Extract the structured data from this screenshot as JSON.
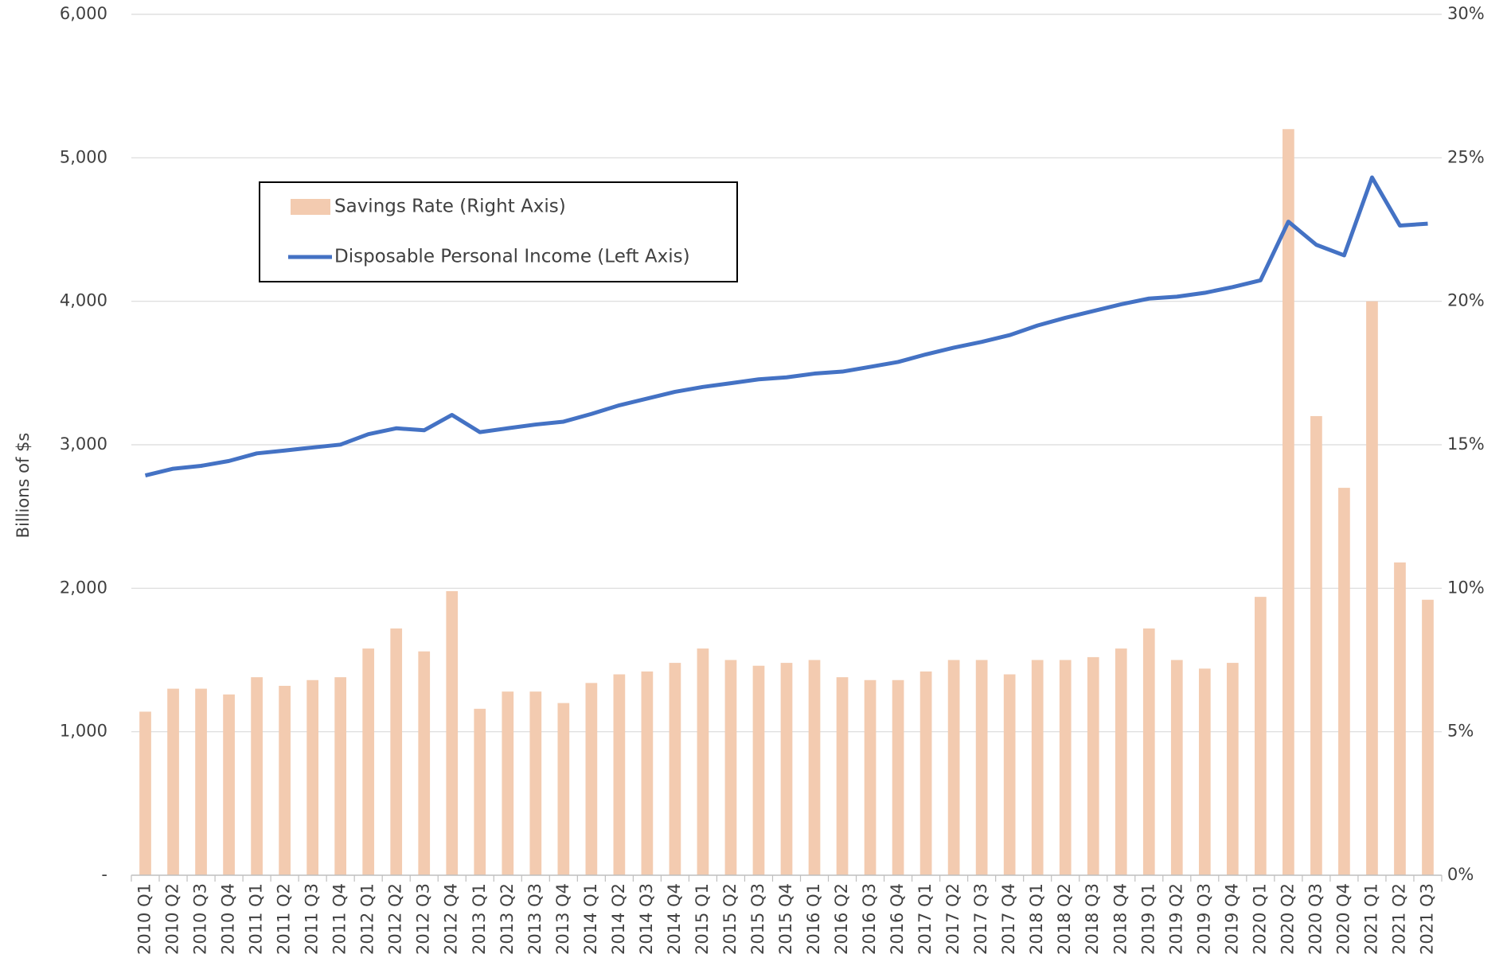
{
  "chart_data": {
    "type": "bar-line",
    "y_label": "Billions of $s",
    "categories": [
      "2010 Q1",
      "2010 Q2",
      "2010 Q3",
      "2010 Q4",
      "2011 Q1",
      "2011 Q2",
      "2011 Q3",
      "2011 Q4",
      "2012 Q1",
      "2012 Q2",
      "2012 Q3",
      "2012 Q4",
      "2013 Q1",
      "2013 Q2",
      "2013 Q3",
      "2013 Q4",
      "2014 Q1",
      "2014 Q2",
      "2014 Q3",
      "2014 Q4",
      "2015 Q1",
      "2015 Q2",
      "2015 Q3",
      "2015 Q4",
      "2016 Q1",
      "2016 Q2",
      "2016 Q3",
      "2016 Q4",
      "2017 Q1",
      "2017 Q2",
      "2017 Q3",
      "2017 Q4",
      "2018 Q1",
      "2018 Q2",
      "2018 Q3",
      "2018 Q4",
      "2019 Q1",
      "2019 Q2",
      "2019 Q3",
      "2019 Q4",
      "2020 Q1",
      "2020 Q2",
      "2020 Q3",
      "2020 Q4",
      "2021 Q1",
      "2021 Q2",
      "2021 Q3"
    ],
    "series": [
      {
        "name": "Savings Rate (Right Axis)",
        "type": "bar",
        "axis": "y2",
        "color": "#f3cbb0",
        "values": [
          5.7,
          6.5,
          6.5,
          6.3,
          6.9,
          6.6,
          6.8,
          6.9,
          7.9,
          8.6,
          7.8,
          9.9,
          5.8,
          6.4,
          6.4,
          6.0,
          6.7,
          7.0,
          7.1,
          7.4,
          7.9,
          7.5,
          7.3,
          7.4,
          7.5,
          6.9,
          6.8,
          6.8,
          7.1,
          7.5,
          7.5,
          7.0,
          7.5,
          7.5,
          7.6,
          7.9,
          8.6,
          7.5,
          7.2,
          7.4,
          9.7,
          26.0,
          16.0,
          13.5,
          20.0,
          10.9,
          9.6
        ]
      },
      {
        "name": "Disposable Personal Income (Left Axis)",
        "type": "line",
        "axis": "y",
        "color": "#4472c4",
        "values": [
          2786,
          2833,
          2853,
          2887,
          2940,
          2960,
          2981,
          3001,
          3074,
          3115,
          3101,
          3208,
          3088,
          3115,
          3141,
          3161,
          3215,
          3275,
          3322,
          3369,
          3403,
          3429,
          3456,
          3470,
          3496,
          3510,
          3543,
          3577,
          3630,
          3677,
          3717,
          3764,
          3831,
          3885,
          3932,
          3979,
          4019,
          4032,
          4059,
          4099,
          4146,
          4555,
          4394,
          4320,
          4863,
          4528,
          4541
        ]
      }
    ],
    "ylim": [
      0,
      6000
    ],
    "yticks": [
      {
        "value": 0,
        "label": "-"
      },
      {
        "value": 1000,
        "label": "1,000"
      },
      {
        "value": 2000,
        "label": "2,000"
      },
      {
        "value": 3000,
        "label": "3,000"
      },
      {
        "value": 4000,
        "label": "4,000"
      },
      {
        "value": 5000,
        "label": "5,000"
      },
      {
        "value": 6000,
        "label": "6,000"
      }
    ],
    "y2lim": [
      0,
      30
    ],
    "y2ticks": [
      {
        "value": 0,
        "label": "0%"
      },
      {
        "value": 5,
        "label": "5%"
      },
      {
        "value": 10,
        "label": "10%"
      },
      {
        "value": 15,
        "label": "15%"
      },
      {
        "value": 20,
        "label": "20%"
      },
      {
        "value": 25,
        "label": "25%"
      },
      {
        "value": 30,
        "label": "30%"
      }
    ],
    "grid": true,
    "legend": "upper left"
  }
}
